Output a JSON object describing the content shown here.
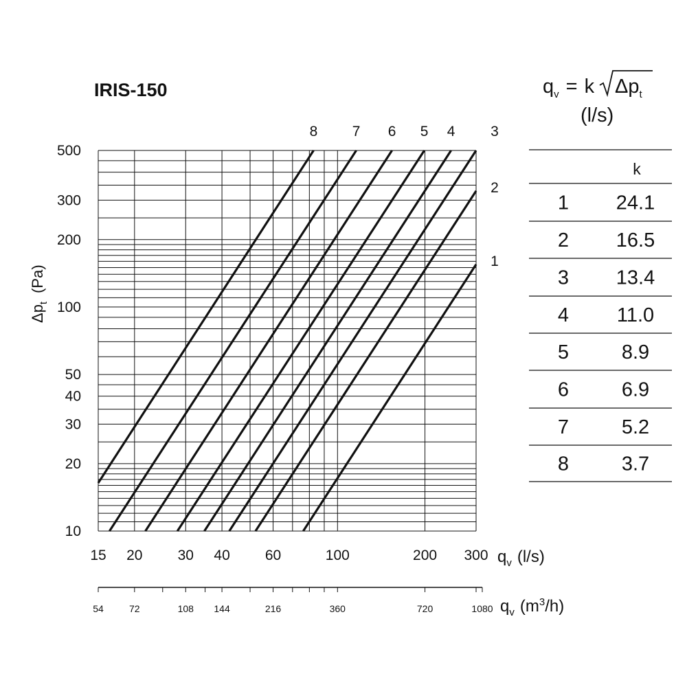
{
  "chart_data": {
    "type": "line",
    "title": "IRIS-150",
    "scale": "log-log",
    "formula": {
      "lhs": "q",
      "lhs_sub": "v",
      "equals": "=",
      "k": "k",
      "radicand": "Δp",
      "radicand_sub": "t",
      "unit": "(l/s)"
    },
    "xlabel": {
      "main": "q",
      "sub": "v",
      "unit": "(l/s)"
    },
    "x2label": {
      "main": "q",
      "sub": "v",
      "unit_pre": "(m",
      "unit_sup": "3",
      "unit_post": "/h)"
    },
    "ylabel": {
      "main": "Δp",
      "sub": "t",
      "unit": "(Pa)"
    },
    "xlim": [
      15,
      300
    ],
    "ylim": [
      10,
      500
    ],
    "x_ticks": [
      "15",
      "20",
      "30",
      "40",
      "60",
      "100",
      "200",
      "300"
    ],
    "x2_ticks": [
      "54",
      "72",
      "108",
      "144",
      "216",
      "360",
      "720",
      "1080"
    ],
    "y_ticks": [
      "10",
      "20",
      "30",
      "40",
      "50",
      "100",
      "200",
      "300",
      "500"
    ],
    "grid": true,
    "series": [
      {
        "name": "1",
        "k": 24.1,
        "x_range": [
          76.2,
          300
        ],
        "y_range": [
          10,
          155
        ]
      },
      {
        "name": "2",
        "k": 16.5,
        "x_range": [
          52.2,
          300
        ],
        "y_range": [
          10,
          330
        ]
      },
      {
        "name": "3",
        "k": 13.4,
        "x_range": [
          42.4,
          300
        ],
        "y_range": [
          10,
          500
        ]
      },
      {
        "name": "4",
        "k": 11.0,
        "x_range": [
          34.8,
          246
        ],
        "y_range": [
          10,
          500
        ]
      },
      {
        "name": "5",
        "k": 8.9,
        "x_range": [
          28.1,
          199
        ],
        "y_range": [
          10,
          500
        ]
      },
      {
        "name": "6",
        "k": 6.9,
        "x_range": [
          21.8,
          154
        ],
        "y_range": [
          10,
          500
        ]
      },
      {
        "name": "7",
        "k": 5.2,
        "x_range": [
          16.4,
          116
        ],
        "y_range": [
          10,
          500
        ]
      },
      {
        "name": "8",
        "k": 3.7,
        "x_range": [
          15,
          82.7
        ],
        "y_range": [
          16.4,
          500
        ]
      }
    ],
    "table": {
      "header": "k",
      "rows": [
        {
          "id": "1",
          "k": "24.1"
        },
        {
          "id": "2",
          "k": "16.5"
        },
        {
          "id": "3",
          "k": "13.4"
        },
        {
          "id": "4",
          "k": "11.0"
        },
        {
          "id": "5",
          "k": "8.9"
        },
        {
          "id": "6",
          "k": "6.9"
        },
        {
          "id": "7",
          "k": "5.2"
        },
        {
          "id": "8",
          "k": "3.7"
        }
      ]
    }
  }
}
